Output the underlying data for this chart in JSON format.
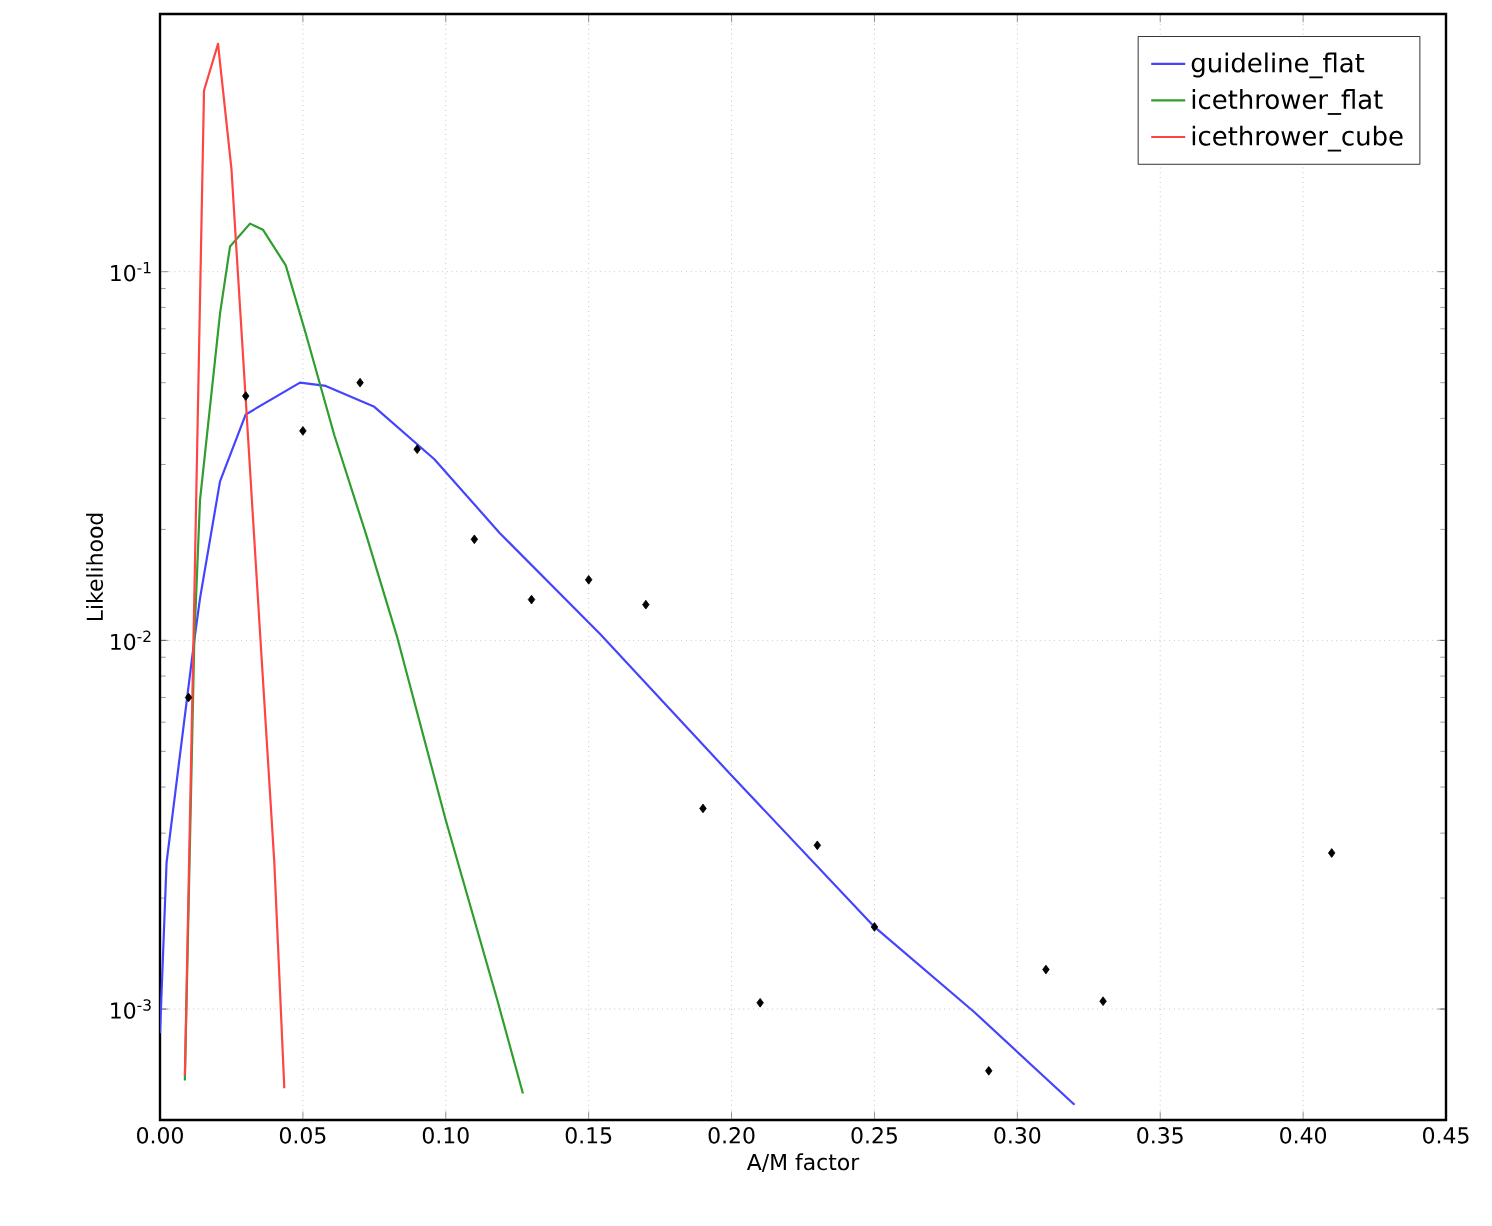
{
  "chart_data": {
    "type": "line",
    "xlabel": "A/M factor",
    "ylabel": "Likelihood",
    "log": "y",
    "grid": true,
    "legend": "top right",
    "xlim": [
      0,
      0.45
    ],
    "ylim": [
      0.0005,
      0.5
    ],
    "xticks": [
      {
        "value": 0,
        "label": "0.00"
      },
      0.05,
      {
        "value": 0.1,
        "label": "0.10"
      },
      0.15,
      {
        "value": 0.2,
        "label": "0.20"
      },
      0.25,
      {
        "value": 0.3,
        "label": "0.30"
      },
      0.35,
      {
        "value": 0.4,
        "label": "0.40"
      },
      0.45
    ],
    "yticks": [
      {
        "value": 0.001,
        "label": "10$^{-3}$"
      },
      {
        "value": 0.01,
        "label": "10$^{-2}$"
      },
      {
        "value": 0.1,
        "label": "10$^{-1}$"
      }
    ],
    "series": [
      {
        "name": "guideline_flat",
        "color": "#4444ff",
        "x": [
          0,
          0.0023,
          0.012,
          0.014,
          0.021,
          0.03,
          0.049,
          0.058,
          0.075,
          0.096,
          0.119,
          0.154,
          0.2,
          0.25,
          0.285,
          0.32
        ],
        "values": [
          0.00086,
          0.0025,
          0.01,
          0.013,
          0.027,
          0.041,
          0.05,
          0.049,
          0.043,
          0.031,
          0.0195,
          0.0104,
          0.0043,
          0.00167,
          0.00098,
          0.00055
        ]
      },
      {
        "name": "icethrower_flat",
        "color": "#2e9e2e",
        "x": [
          0.0087,
          0.012,
          0.014,
          0.021,
          0.0245,
          0.0315,
          0.036,
          0.044,
          0.051,
          0.061,
          0.072,
          0.083,
          0.1,
          0.118,
          0.127
        ],
        "values": [
          0.00064,
          0.01,
          0.024,
          0.077,
          0.117,
          0.135,
          0.13,
          0.104,
          0.068,
          0.036,
          0.0195,
          0.0102,
          0.00325,
          0.00106,
          0.00059
        ]
      },
      {
        "name": "icethrower_cube",
        "color": "#ff4444",
        "x": [
          0.0087,
          0.012,
          0.0154,
          0.0203,
          0.025,
          0.03,
          0.035,
          0.04,
          0.0435
        ],
        "values": [
          0.00066,
          0.013,
          0.31,
          0.415,
          0.19,
          0.045,
          0.0105,
          0.0025,
          0.00061
        ]
      },
      {
        "type": "scatter",
        "color": "#000000",
        "marker": "diamond",
        "x": [
          0.01,
          0.03,
          0.05,
          0.07,
          0.09,
          0.11,
          0.13,
          0.15,
          0.17,
          0.19,
          0.21,
          0.23,
          0.25,
          0.29,
          0.31,
          0.33,
          0.41
        ],
        "values": [
          0.007,
          0.046,
          0.037,
          0.05,
          0.033,
          0.0188,
          0.0129,
          0.0146,
          0.0125,
          0.0035,
          0.00104,
          0.00278,
          0.00167,
          0.00068,
          0.00128,
          0.00105,
          0.00265
        ]
      }
    ]
  }
}
